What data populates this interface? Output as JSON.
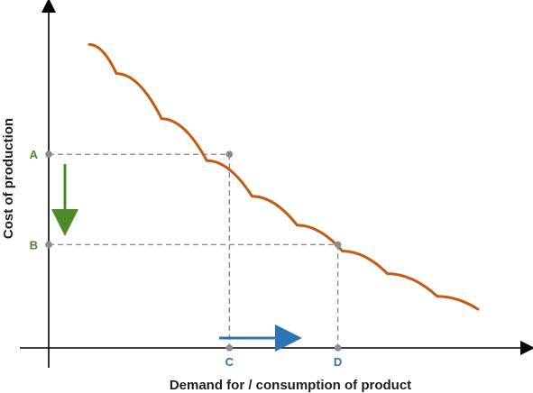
{
  "chart_data": {
    "type": "line",
    "title": "",
    "xlabel": "Demand for / consumption of product",
    "ylabel": "Cost of production",
    "grid": false,
    "colors": {
      "curve": "#c55a11",
      "cost_arrow": "#4e8a2a",
      "demand_arrow": "#2e74b5",
      "guide": "#8a8a8a",
      "axis": "#000000"
    },
    "series": [
      {
        "values_x": [
          0.9,
          1.5,
          2.5,
          3.5,
          4.5,
          5.5,
          6.5,
          7.5,
          8.6,
          9.5
        ],
        "values_y": [
          9.4,
          8.5,
          7.1,
          5.8,
          4.7,
          3.8,
          3.0,
          2.3,
          1.6,
          1.2
        ]
      }
    ],
    "xlim": [
      0,
      10.5
    ],
    "ylim": [
      0,
      10.5
    ],
    "annotations": {
      "points": [
        {
          "label": "A",
          "axis": "y",
          "value": 6.0
        },
        {
          "label": "B",
          "axis": "y",
          "value": 3.2
        },
        {
          "label": "C",
          "axis": "x",
          "value": 4.0
        },
        {
          "label": "D",
          "axis": "x",
          "value": 6.4
        }
      ],
      "intersections": [
        {
          "from_y": "A",
          "from_x": "C"
        },
        {
          "from_y": "B",
          "from_x": "D"
        }
      ]
    }
  }
}
